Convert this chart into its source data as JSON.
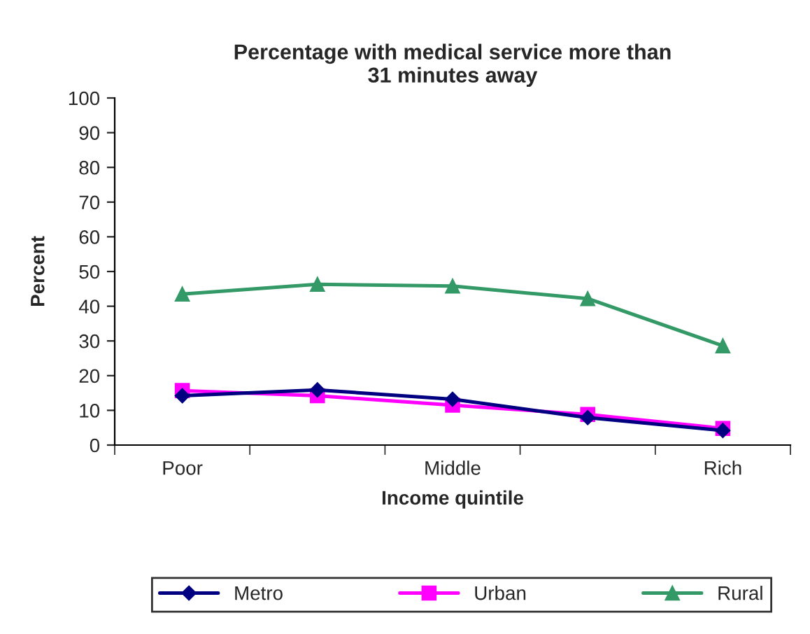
{
  "chart_data": {
    "type": "line",
    "title": "Percentage with medical service more than\n31 minutes away",
    "xlabel": "Income quintile",
    "ylabel": "Percent",
    "categories": [
      "Poor",
      null,
      "Middle",
      null,
      "Rich"
    ],
    "series": [
      {
        "name": "Metro",
        "color": "#000080",
        "marker": "diamond",
        "values": [
          14.2,
          15.9,
          13.2,
          7.9,
          4.2
        ]
      },
      {
        "name": "Urban",
        "color": "#ff00ff",
        "marker": "square",
        "values": [
          15.7,
          14.2,
          11.5,
          8.8,
          4.8
        ]
      },
      {
        "name": "Rural",
        "color": "#339966",
        "marker": "triangle",
        "values": [
          43.5,
          46.3,
          45.8,
          42.2,
          28.6
        ]
      }
    ],
    "ylim": [
      0,
      100
    ],
    "yticks": [
      0,
      10,
      20,
      30,
      40,
      50,
      60,
      70,
      80,
      90,
      100
    ],
    "grid": false,
    "legend": "bottom",
    "line_style": "solid"
  }
}
